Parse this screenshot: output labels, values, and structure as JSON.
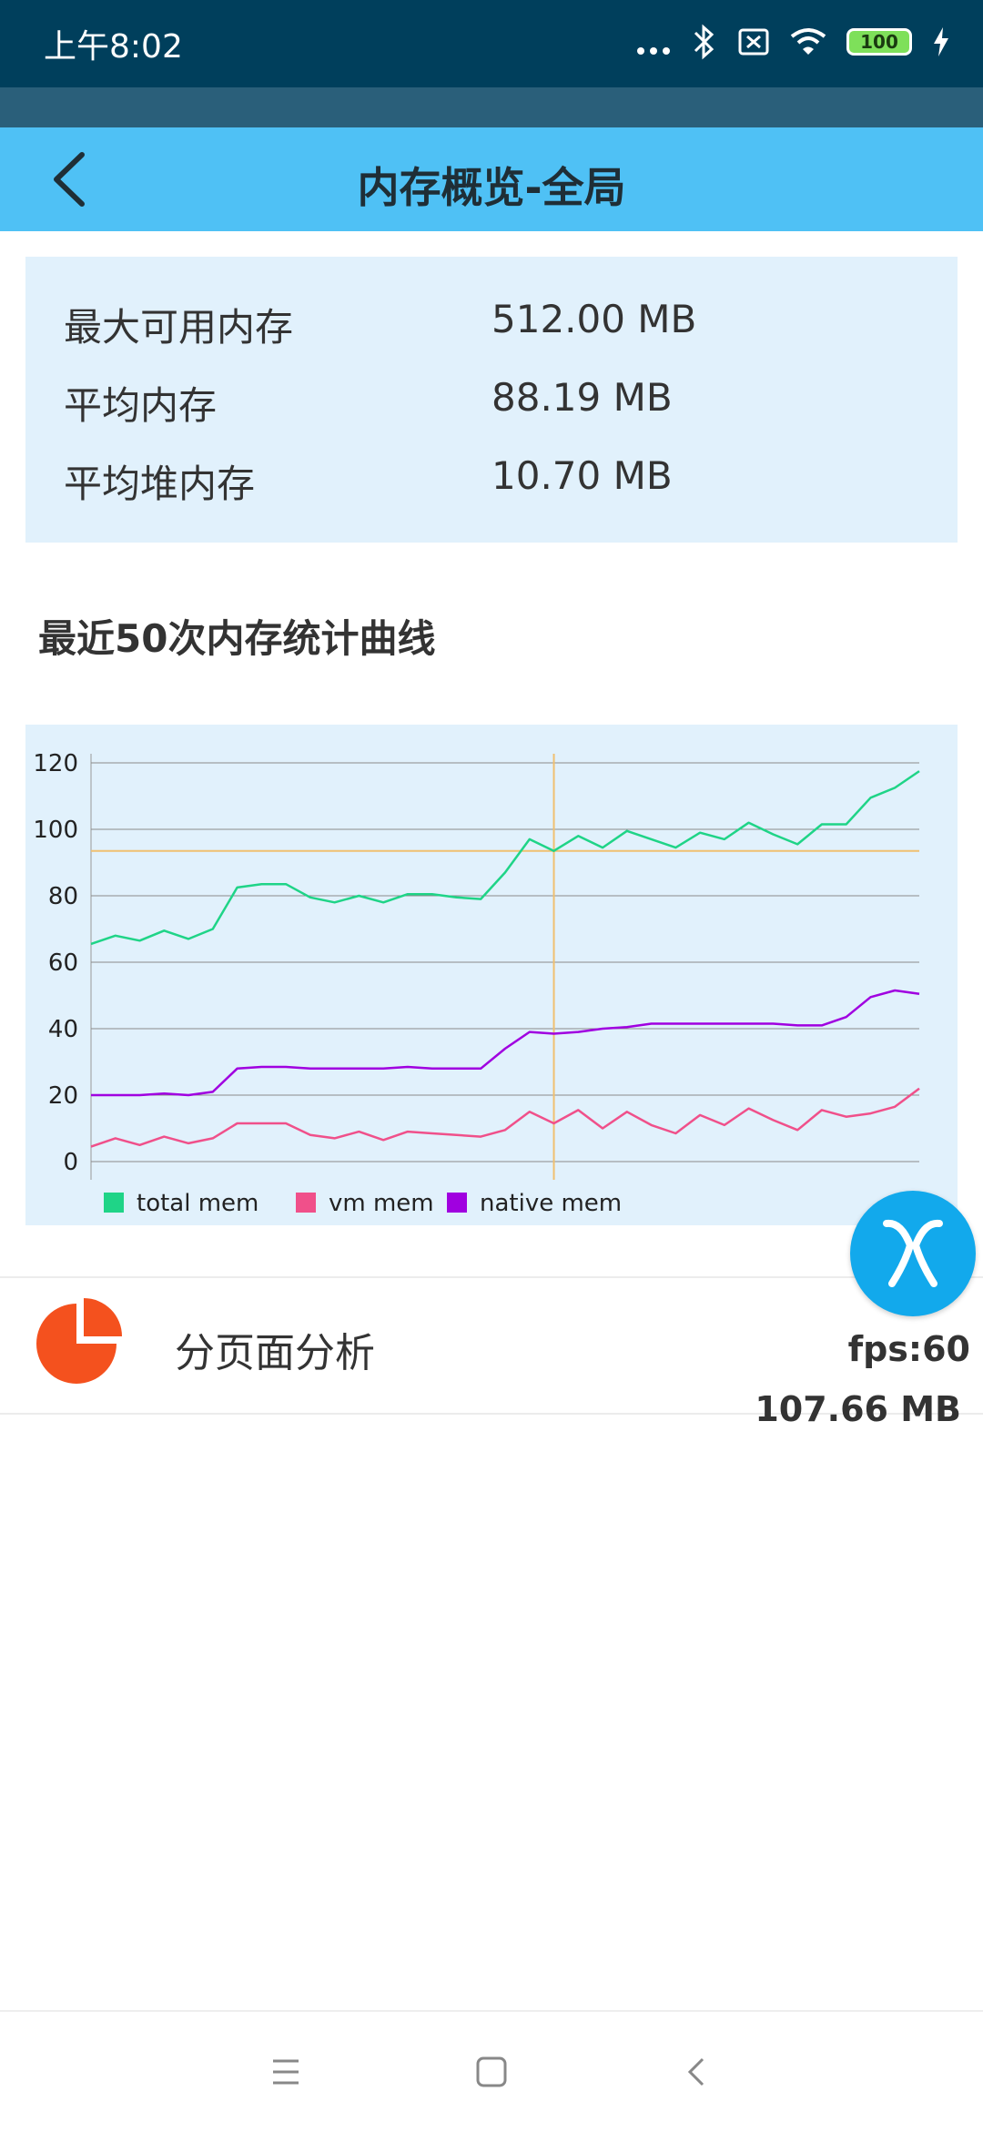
{
  "status_bar": {
    "time": "上午8:02",
    "battery": "100",
    "icons": [
      "more-dots-icon",
      "bluetooth-icon",
      "sim-off-icon",
      "wifi-icon",
      "battery-icon",
      "charging-icon"
    ]
  },
  "app_bar": {
    "title": "内存概览-全局",
    "back_icon": "chevron-left-icon"
  },
  "summary": {
    "rows": [
      {
        "label": "最大可用内存",
        "value": "512.00 MB"
      },
      {
        "label": "平均内存",
        "value": "88.19 MB"
      },
      {
        "label": "平均堆内存",
        "value": "10.70 MB"
      }
    ]
  },
  "section": {
    "title": "最近50次内存统计曲线"
  },
  "chart_data": {
    "type": "line",
    "ylim": [
      0,
      120
    ],
    "yticks": [
      0,
      20,
      40,
      60,
      80,
      100,
      120
    ],
    "grid": true,
    "legend_position": "bottom-left",
    "x": [
      1,
      2,
      3,
      4,
      5,
      6,
      7,
      8,
      9,
      10,
      11,
      12,
      13,
      14,
      15,
      16,
      17,
      18,
      19,
      20,
      21,
      22,
      23,
      24,
      25,
      26,
      27,
      28,
      29,
      30,
      31,
      32,
      33,
      34,
      35
    ],
    "series": [
      {
        "name": "total mem",
        "color": "#1fd487",
        "values": [
          65.5,
          68,
          66.5,
          69.5,
          67,
          70,
          82.5,
          83.5,
          83.5,
          79.5,
          78,
          80,
          78,
          80.5,
          80.5,
          79.5,
          79,
          87,
          97,
          93.5,
          98,
          94.5,
          99.5,
          97,
          94.5,
          99,
          97,
          102,
          98.5,
          95.5,
          101.5,
          101.5,
          109.5,
          112.5,
          117.5
        ]
      },
      {
        "name": "vm mem",
        "color": "#f0508a",
        "values": [
          4.5,
          7,
          5,
          7.5,
          5.5,
          7,
          11.5,
          11.5,
          11.5,
          8,
          7,
          9,
          6.5,
          9,
          8.5,
          8,
          7.5,
          9.5,
          15,
          11.5,
          15.5,
          10,
          15,
          11,
          8.5,
          14,
          11,
          16,
          12.5,
          9.5,
          15.5,
          13.5,
          14.5,
          16.5,
          22
        ]
      },
      {
        "name": "native mem",
        "color": "#a000e0",
        "values": [
          20,
          20,
          20,
          20.5,
          20,
          21,
          28,
          28.5,
          28.5,
          28,
          28,
          28,
          28,
          28.5,
          28,
          28,
          28,
          34,
          39,
          38.5,
          39,
          40,
          40.5,
          41.5,
          41.5,
          41.5,
          41.5,
          41.5,
          41.5,
          41,
          41,
          43.5,
          49.5,
          51.5,
          50.5
        ]
      }
    ],
    "highlight": {
      "x": 20,
      "y": 93.5
    }
  },
  "list": {
    "items": [
      {
        "label": "分页面分析",
        "icon": "pie-chart-icon"
      }
    ]
  },
  "floating": {
    "fps": "fps:60",
    "mem": "107.66 MB",
    "icon": "monitor-logo-icon"
  },
  "nav_bar": {
    "icons": [
      "menu-icon",
      "home-icon",
      "back-icon"
    ]
  }
}
